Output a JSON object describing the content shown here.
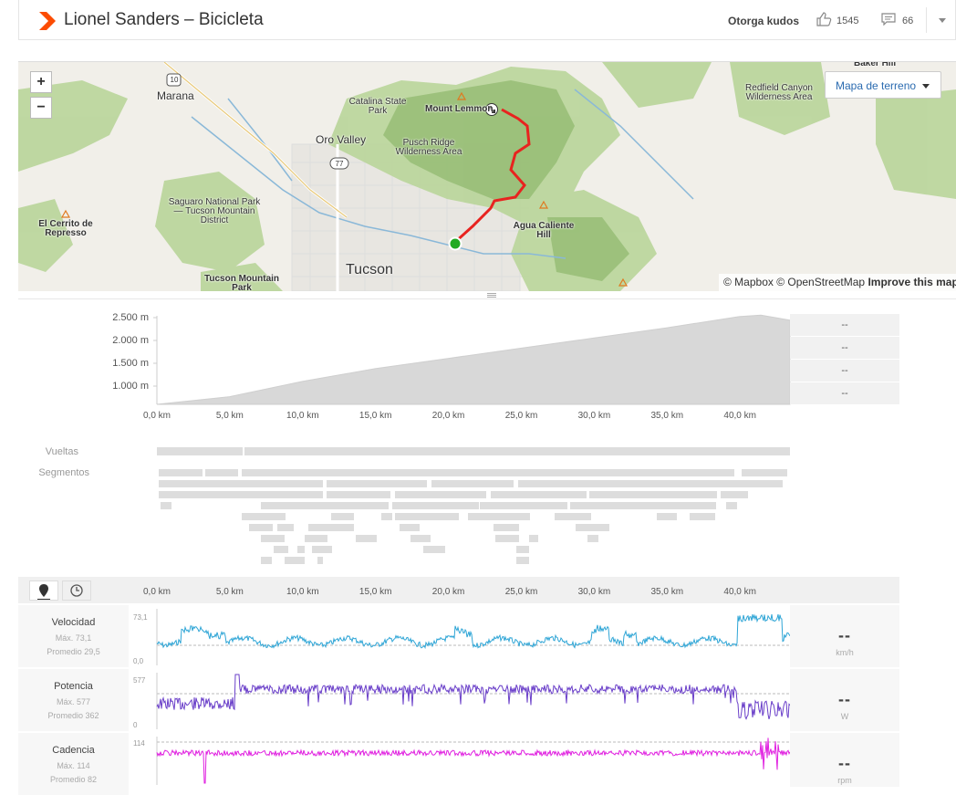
{
  "header": {
    "title": "Lionel Sanders – Bicicleta",
    "kudos_label": "Otorga kudos",
    "kudos_count": "1545",
    "comments_count": "66",
    "brand_color": "#fc4c02"
  },
  "map": {
    "zoom_in": "+",
    "zoom_out": "−",
    "terrain_button": "Mapa de terreno",
    "attribution": "© Mapbox © OpenStreetMap",
    "improve_link": "Improve this map",
    "route_color": "#e8231f",
    "start_color": "#22aa22",
    "labels": {
      "marana": "Marana",
      "oro_valley": "Oro Valley",
      "tucson": "Tucson",
      "catalina": "Catalina State Park",
      "mount_lemmon": "Mount Lemmon",
      "pusch_ridge": "Pusch Ridge Wilderness Area",
      "saguaro": "Saguaro National Park — Tucson Mountain District",
      "el_cerrito": "El Cerrito de Represso",
      "tucson_mountain": "Tucson Mountain Park",
      "agua_caliente": "Agua Caliente Hill",
      "redfield": "Redfield Canyon Wilderness Area",
      "baker_hill": "Baker Hill",
      "hwy_10": "10",
      "hwy_77": "77"
    }
  },
  "elevation": {
    "y_ticks": [
      "2.500 m",
      "2.000 m",
      "1.500 m",
      "1.000 m"
    ],
    "x_ticks": [
      "0,0 km",
      "5,0 km",
      "10,0 km",
      "15,0 km",
      "20,0 km",
      "25,0 km",
      "30,0 km",
      "35,0 km",
      "40,0 km"
    ],
    "stats": [
      "--",
      "--",
      "--",
      "--"
    ],
    "chart_data": {
      "type": "area",
      "x": [
        0,
        5,
        10,
        15,
        20,
        25,
        30,
        35,
        40,
        41.5,
        43.5
      ],
      "y": [
        800,
        950,
        1250,
        1500,
        1700,
        1900,
        2100,
        2300,
        2520,
        2550,
        2450
      ],
      "ylim": [
        800,
        2600
      ]
    }
  },
  "laps": {
    "laps_label": "Vueltas",
    "segments_label": "Segmentos"
  },
  "streams": {
    "x_ticks": [
      "0,0 km",
      "5,0 km",
      "10,0 km",
      "15,0 km",
      "20,0 km",
      "25,0 km",
      "30,0 km",
      "35,0 km",
      "40,0 km"
    ],
    "velocity": {
      "name": "Velocidad",
      "max": "Máx. 73,1",
      "avg": "Promedio 29,5",
      "ymax": "73,1",
      "ymin": "0,0",
      "value": "--",
      "unit": "km/h",
      "color": "#2ea5d6"
    },
    "power": {
      "name": "Potencia",
      "max": "Máx. 577",
      "avg": "Promedio 362",
      "ymax": "577",
      "ymin": "0",
      "value": "--",
      "unit": "W",
      "color": "#6a3fc9"
    },
    "cadence": {
      "name": "Cadencia",
      "max": "Máx. 114",
      "avg": "Promedio 82",
      "ymax": "114",
      "value": "--",
      "unit": "rpm",
      "color": "#e020e0"
    }
  }
}
